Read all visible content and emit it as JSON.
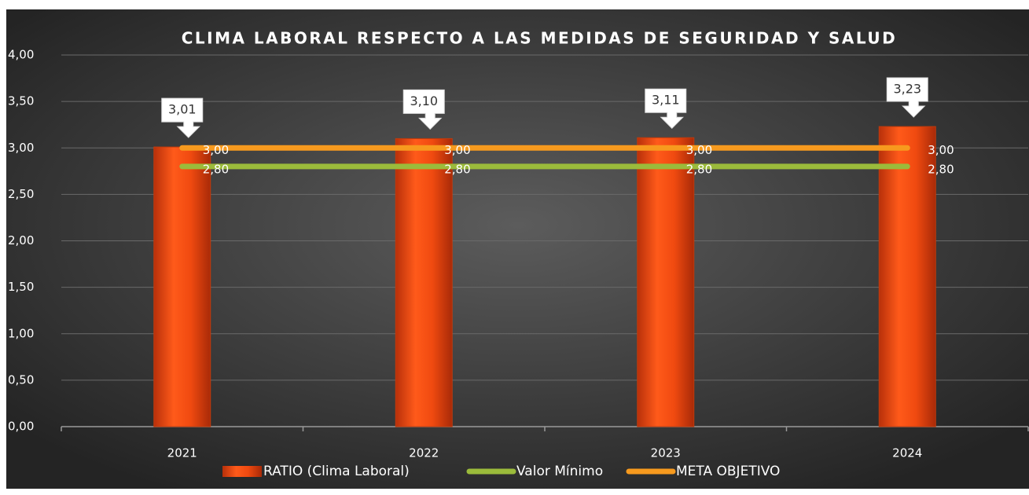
{
  "chart_data": {
    "type": "bar",
    "title": "CLIMA LABORAL RESPECTO A LAS MEDIDAS DE SEGURIDAD Y SALUD",
    "categories": [
      "2021",
      "2022",
      "2023",
      "2024"
    ],
    "series": [
      {
        "name": "RATIO (Clima Laboral)",
        "type": "bar",
        "color": "#f04a10",
        "values": [
          3.01,
          3.1,
          3.11,
          3.23
        ],
        "value_labels": [
          "3,01",
          "3,10",
          "3,11",
          "3,23"
        ]
      },
      {
        "name": "Valor Mínimo",
        "type": "line",
        "color": "#9bbb3b",
        "values": [
          2.8,
          2.8,
          2.8,
          2.8
        ],
        "value_labels": [
          "2,80",
          "2,80",
          "2,80",
          "2,80"
        ]
      },
      {
        "name": "META OBJETIVO",
        "type": "line",
        "color": "#f79a1e",
        "values": [
          3,
          3,
          3,
          3
        ],
        "value_labels": [
          "3,00",
          "3,00",
          "3,00",
          "3,00"
        ]
      }
    ],
    "ylim": [
      0,
      4
    ],
    "yticks": [
      {
        "value": 0,
        "label": "0,00"
      },
      {
        "value": 0.5,
        "label": "0,50"
      },
      {
        "value": 1,
        "label": "1,00"
      },
      {
        "value": 1.5,
        "label": "1,50"
      },
      {
        "value": 2,
        "label": "2,00"
      },
      {
        "value": 2.5,
        "label": "2,50"
      },
      {
        "value": 3,
        "label": "3,00"
      },
      {
        "value": 3.5,
        "label": "3,50"
      },
      {
        "value": 4,
        "label": "4,00"
      }
    ],
    "grid": true,
    "legend": "bottom"
  }
}
